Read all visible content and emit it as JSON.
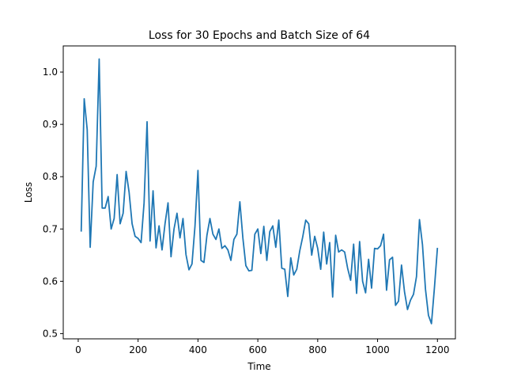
{
  "chart_data": {
    "type": "line",
    "title": "Loss for 30 Epochs and Batch Size of 64",
    "xlabel": "Time",
    "ylabel": "Loss",
    "xlim": [
      -50,
      1260
    ],
    "ylim": [
      0.49,
      1.05
    ],
    "xticks": [
      0,
      200,
      400,
      600,
      800,
      1000,
      1200
    ],
    "yticks": [
      0.5,
      0.6,
      0.7,
      0.8,
      0.9,
      1.0
    ],
    "ytick_labels": [
      "0.5",
      "0.6",
      "0.7",
      "0.8",
      "0.9",
      "1.0"
    ],
    "grid": false,
    "series": [
      {
        "color": "#1f77b4",
        "x": [
          10,
          20,
          30,
          40,
          50,
          60,
          70,
          80,
          90,
          100,
          110,
          120,
          130,
          140,
          150,
          160,
          170,
          180,
          190,
          200,
          210,
          220,
          230,
          240,
          250,
          260,
          270,
          280,
          290,
          300,
          310,
          320,
          330,
          340,
          350,
          360,
          370,
          380,
          390,
          400,
          410,
          420,
          430,
          440,
          450,
          460,
          470,
          480,
          490,
          500,
          510,
          520,
          530,
          540,
          550,
          560,
          570,
          580,
          590,
          600,
          610,
          620,
          630,
          640,
          650,
          660,
          670,
          680,
          690,
          700,
          710,
          720,
          730,
          740,
          750,
          760,
          770,
          780,
          790,
          800,
          810,
          820,
          830,
          840,
          850,
          860,
          870,
          880,
          890,
          900,
          910,
          920,
          930,
          940,
          950,
          960,
          970,
          980,
          990,
          1000,
          1010,
          1020,
          1030,
          1040,
          1050,
          1060,
          1070,
          1080,
          1090,
          1100,
          1110,
          1120,
          1130,
          1140,
          1150,
          1160,
          1170,
          1180,
          1190,
          1200
        ],
        "y": [
          0.695,
          0.949,
          0.89,
          0.665,
          0.79,
          0.82,
          1.025,
          0.74,
          0.74,
          0.762,
          0.7,
          0.72,
          0.804,
          0.71,
          0.73,
          0.81,
          0.77,
          0.71,
          0.686,
          0.682,
          0.674,
          0.75,
          0.905,
          0.677,
          0.773,
          0.664,
          0.706,
          0.66,
          0.71,
          0.75,
          0.647,
          0.7,
          0.73,
          0.683,
          0.72,
          0.651,
          0.622,
          0.633,
          0.705,
          0.812,
          0.64,
          0.636,
          0.688,
          0.72,
          0.69,
          0.68,
          0.7,
          0.663,
          0.668,
          0.66,
          0.64,
          0.68,
          0.69,
          0.752,
          0.683,
          0.63,
          0.62,
          0.621,
          0.69,
          0.7,
          0.653,
          0.705,
          0.64,
          0.695,
          0.706,
          0.665,
          0.717,
          0.625,
          0.623,
          0.571,
          0.645,
          0.612,
          0.623,
          0.658,
          0.685,
          0.717,
          0.71,
          0.65,
          0.686,
          0.663,
          0.623,
          0.694,
          0.633,
          0.674,
          0.57,
          0.688,
          0.656,
          0.66,
          0.656,
          0.625,
          0.602,
          0.671,
          0.577,
          0.676,
          0.6,
          0.578,
          0.642,
          0.587,
          0.663,
          0.662,
          0.668,
          0.69,
          0.583,
          0.641,
          0.646,
          0.554,
          0.562,
          0.631,
          0.58,
          0.546,
          0.564,
          0.575,
          0.609,
          0.718,
          0.67,
          0.585,
          0.535,
          0.519,
          0.588,
          0.664
        ]
      }
    ]
  }
}
